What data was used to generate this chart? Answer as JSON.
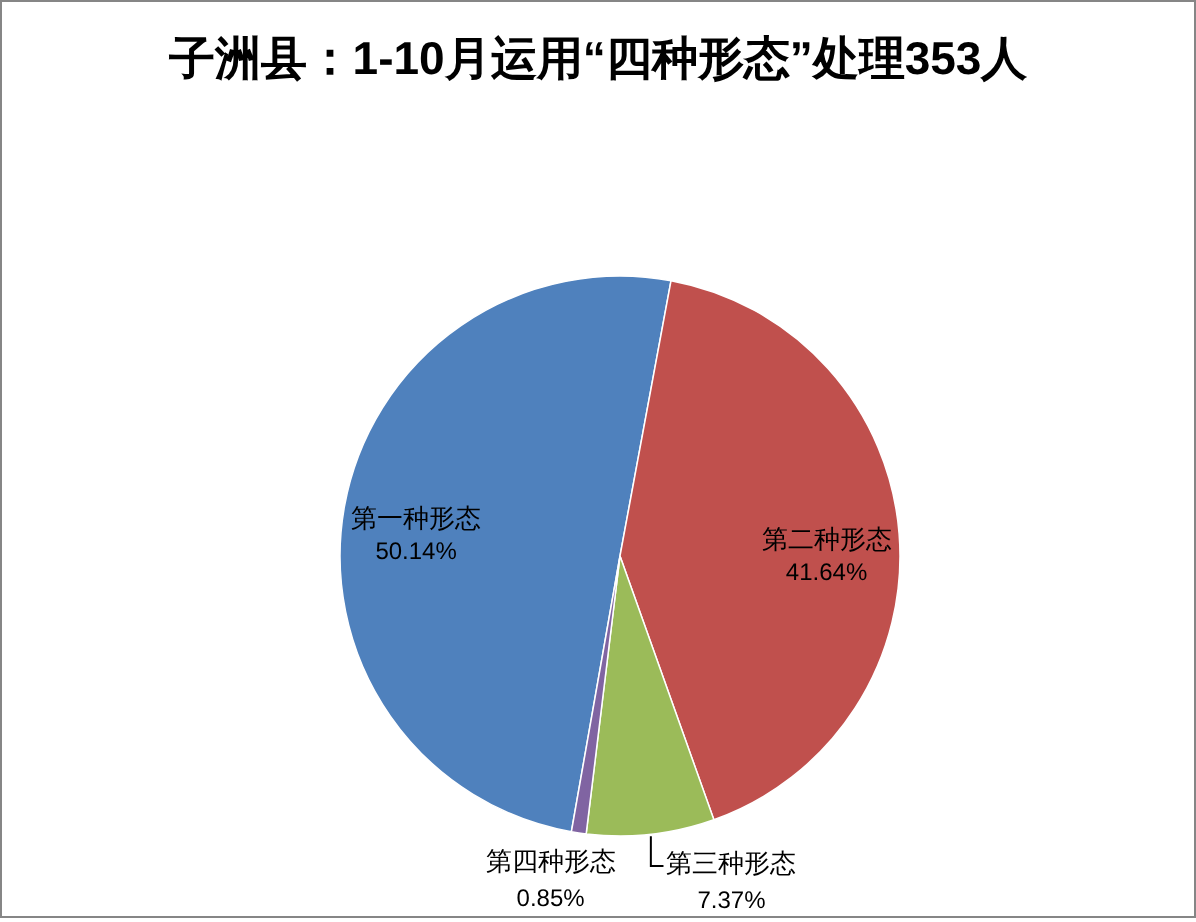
{
  "chart_data": {
    "type": "pie",
    "title": "子洲县：1-10月运用“四种形态”处理353人",
    "categories": [
      "第一种形态",
      "第二种形态",
      "第三种形态",
      "第四种形态"
    ],
    "values": [
      50.14,
      41.64,
      7.37,
      0.85
    ],
    "colors": [
      "#4f81bd",
      "#c0504d",
      "#9bbb59",
      "#8064a2"
    ],
    "value_labels": [
      "50.14%",
      "41.64%",
      "7.37%",
      "0.85%"
    ]
  }
}
